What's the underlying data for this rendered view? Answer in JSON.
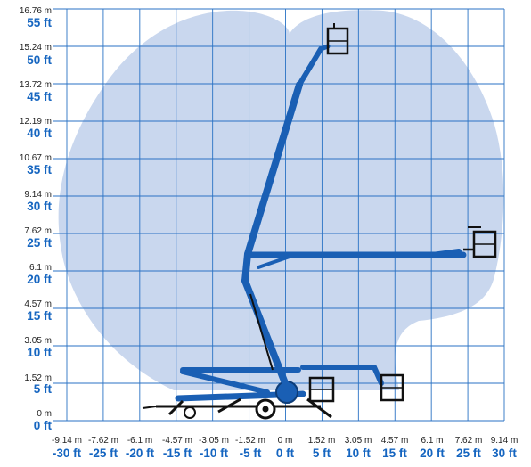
{
  "chart_data": {
    "type": "diagram",
    "title": "",
    "y_axis": {
      "meters": [
        "0 m",
        "1.52 m",
        "3.05 m",
        "4.57 m",
        "6.1 m",
        "7.62 m",
        "9.14 m",
        "10.67 m",
        "12.19 m",
        "13.72 m",
        "15.24 m",
        "16.76 m"
      ],
      "feet": [
        "0 ft",
        "5 ft",
        "10 ft",
        "15 ft",
        "20 ft",
        "25 ft",
        "30 ft",
        "35 ft",
        "40 ft",
        "45 ft",
        "50 ft",
        "55 ft"
      ]
    },
    "x_axis": {
      "meters": [
        "-9.14 m",
        "-7.62 m",
        "-6.1 m",
        "-4.57 m",
        "-3.05 m",
        "-1.52 m",
        "0 m",
        "1.52 m",
        "3.05 m",
        "4.57 m",
        "6.1 m",
        "7.62 m",
        "9.14 m"
      ],
      "feet": [
        "-30 ft",
        "-25 ft",
        "-20 ft",
        "-15 ft",
        "-10 ft",
        "-5 ft",
        "0 ft",
        "5 ft",
        "10 ft",
        "15 ft",
        "20 ft",
        "25 ft",
        "30 ft"
      ]
    },
    "working_envelope_color": "#c9d7ee",
    "machine_color": "#1a5fb4",
    "grid_color": "#2a72c4"
  }
}
